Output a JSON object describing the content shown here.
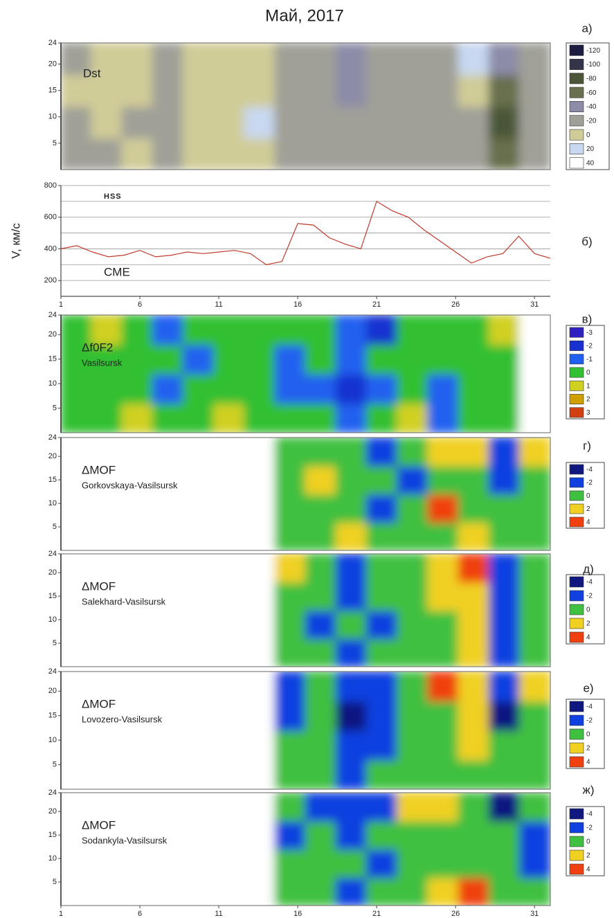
{
  "title": "Май, 2017",
  "chart_data": [
    {
      "type": "heatmap",
      "panel": "а)",
      "label": "Dst",
      "xlim": [
        1,
        32
      ],
      "ylim": [
        0,
        24
      ],
      "yticks": [
        5,
        10,
        15,
        20,
        24
      ],
      "scale": [
        -120,
        -100,
        -80,
        -60,
        -40,
        -20,
        0,
        20,
        40
      ],
      "colors": [
        "#1c1c40",
        "#33334a",
        "#4b5638",
        "#68704e",
        "#8c8ca8",
        "#a0a098",
        "#d0cc98",
        "#c8d8f0",
        "#ffffff"
      ],
      "z": [
        [
          -20,
          -20,
          0,
          -20,
          0,
          0,
          0,
          -20,
          -20,
          -20,
          -20,
          -20,
          -20,
          -20,
          -60,
          -20
        ],
        [
          -20,
          0,
          -20,
          -20,
          0,
          0,
          20,
          -20,
          -20,
          -20,
          -20,
          -20,
          -20,
          -20,
          -80,
          -20
        ],
        [
          0,
          0,
          0,
          -20,
          0,
          0,
          0,
          -20,
          -20,
          -40,
          -20,
          -20,
          -20,
          0,
          -60,
          -20
        ],
        [
          -20,
          0,
          0,
          -20,
          0,
          0,
          0,
          -20,
          -20,
          -40,
          -20,
          -20,
          -20,
          20,
          -40,
          -20
        ]
      ]
    },
    {
      "type": "line",
      "panel": "б)",
      "ylabel": "V, км/с",
      "annotations": [
        "HSS",
        "CME"
      ],
      "xlim": [
        1,
        32
      ],
      "xticks": [
        1,
        6,
        11,
        16,
        21,
        26,
        31
      ],
      "ylim": [
        100,
        800
      ],
      "yticks": [
        200,
        400,
        600,
        800
      ],
      "ygrid": [
        200,
        300,
        400,
        500,
        600,
        700,
        800
      ],
      "color": "#c0392b",
      "x": [
        1,
        2,
        3,
        4,
        5,
        6,
        7,
        8,
        9,
        10,
        11,
        12,
        13,
        14,
        15,
        16,
        17,
        18,
        19,
        20,
        21,
        22,
        23,
        24,
        25,
        26,
        27,
        28,
        29,
        30,
        31,
        32
      ],
      "values": [
        400,
        420,
        380,
        350,
        360,
        390,
        350,
        360,
        380,
        370,
        380,
        390,
        370,
        300,
        320,
        560,
        550,
        470,
        430,
        400,
        700,
        640,
        600,
        520,
        450,
        380,
        310,
        350,
        370,
        480,
        370,
        340
      ]
    },
    {
      "type": "heatmap",
      "panel": "в)",
      "label": "Δf0F2",
      "sublabel": "Vasilsursk",
      "xlim": [
        1,
        32
      ],
      "ylim": [
        0,
        24
      ],
      "yticks": [
        5,
        10,
        15,
        20,
        24
      ],
      "scale": [
        -3,
        -2,
        -1,
        0,
        1,
        2,
        3
      ],
      "colors": [
        "#3020c0",
        "#1830d0",
        "#2060f0",
        "#30c030",
        "#d0d020",
        "#d0a000",
        "#d04010"
      ],
      "z": [
        [
          0,
          0,
          1,
          0,
          0,
          1,
          0,
          0,
          0,
          -1,
          0,
          1,
          -1,
          0,
          0,
          null
        ],
        [
          0,
          0,
          0,
          -1,
          0,
          0,
          0,
          -1,
          -1,
          -2,
          -1,
          0,
          -1,
          0,
          0,
          null
        ],
        [
          0,
          0,
          0,
          0,
          -1,
          0,
          0,
          -1,
          0,
          -1,
          0,
          0,
          0,
          0,
          0,
          null
        ],
        [
          0,
          1,
          0,
          -1,
          0,
          0,
          0,
          0,
          0,
          -1,
          -2,
          0,
          0,
          0,
          1,
          null
        ]
      ]
    },
    {
      "type": "heatmap",
      "panel": "г)",
      "label": "ΔMOF",
      "sublabel": "Gorkovskaya-Vasilsursk",
      "xlim": [
        1,
        32
      ],
      "ylim": [
        0,
        24
      ],
      "yticks": [
        5,
        10,
        15,
        20,
        24
      ],
      "scale": [
        -4,
        -2,
        0,
        2,
        4
      ],
      "colors": [
        "#101880",
        "#1040e0",
        "#40c040",
        "#f0d020",
        "#f04010"
      ],
      "z": [
        [
          null,
          null,
          null,
          null,
          null,
          null,
          null,
          0,
          0,
          2,
          0,
          0,
          0,
          2,
          0,
          0
        ],
        [
          null,
          null,
          null,
          null,
          null,
          null,
          null,
          0,
          0,
          0,
          -2,
          0,
          4,
          0,
          0,
          0
        ],
        [
          null,
          null,
          null,
          null,
          null,
          null,
          null,
          0,
          2,
          0,
          0,
          -2,
          0,
          0,
          -2,
          0
        ],
        [
          null,
          null,
          null,
          null,
          null,
          null,
          null,
          0,
          0,
          0,
          -2,
          0,
          2,
          2,
          -2,
          2
        ]
      ]
    },
    {
      "type": "heatmap",
      "panel": "д)",
      "label": "ΔMOF",
      "sublabel": "Salekhard-Vasilsursk",
      "xlim": [
        1,
        32
      ],
      "ylim": [
        0,
        24
      ],
      "yticks": [
        5,
        10,
        15,
        20,
        24
      ],
      "scale": [
        -4,
        -2,
        0,
        2,
        4
      ],
      "colors": [
        "#101880",
        "#1040e0",
        "#40c040",
        "#f0d020",
        "#f04010"
      ],
      "z": [
        [
          null,
          null,
          null,
          null,
          null,
          null,
          null,
          0,
          0,
          -2,
          0,
          0,
          0,
          2,
          -2,
          0
        ],
        [
          null,
          null,
          null,
          null,
          null,
          null,
          null,
          0,
          -2,
          0,
          -2,
          0,
          0,
          2,
          -2,
          0
        ],
        [
          null,
          null,
          null,
          null,
          null,
          null,
          null,
          0,
          0,
          -2,
          0,
          0,
          2,
          2,
          -2,
          0
        ],
        [
          null,
          null,
          null,
          null,
          null,
          null,
          null,
          2,
          0,
          -2,
          0,
          0,
          2,
          4,
          -2,
          0
        ]
      ]
    },
    {
      "type": "heatmap",
      "panel": "е)",
      "label": "ΔMOF",
      "sublabel": "Lovozero-Vasilsursk",
      "xlim": [
        1,
        32
      ],
      "ylim": [
        0,
        24
      ],
      "yticks": [
        5,
        10,
        15,
        20,
        24
      ],
      "scale": [
        -4,
        -2,
        0,
        2,
        4
      ],
      "colors": [
        "#101880",
        "#1040e0",
        "#40c040",
        "#f0d020",
        "#f04010"
      ],
      "z": [
        [
          null,
          null,
          null,
          null,
          null,
          null,
          null,
          0,
          0,
          -2,
          0,
          0,
          0,
          0,
          0,
          0
        ],
        [
          null,
          null,
          null,
          null,
          null,
          null,
          null,
          0,
          0,
          -2,
          -2,
          0,
          0,
          2,
          0,
          0
        ],
        [
          null,
          null,
          null,
          null,
          null,
          null,
          null,
          -2,
          0,
          -4,
          -2,
          0,
          0,
          2,
          -4,
          0
        ],
        [
          null,
          null,
          null,
          null,
          null,
          null,
          null,
          -2,
          0,
          -2,
          -2,
          0,
          4,
          2,
          -2,
          2
        ]
      ]
    },
    {
      "type": "heatmap",
      "panel": "ж)",
      "label": "ΔMOF",
      "sublabel": "Sodankyla-Vasilsursk",
      "xlim": [
        1,
        32
      ],
      "ylim": [
        0,
        24
      ],
      "yticks": [
        5,
        10,
        15,
        20,
        24
      ],
      "xticks": [
        1,
        6,
        11,
        16,
        21,
        26,
        31
      ],
      "scale": [
        -4,
        -2,
        0,
        2,
        4
      ],
      "colors": [
        "#101880",
        "#1040e0",
        "#40c040",
        "#f0d020",
        "#f04010"
      ],
      "z": [
        [
          null,
          null,
          null,
          null,
          null,
          null,
          null,
          0,
          0,
          -2,
          0,
          0,
          2,
          4,
          0,
          0
        ],
        [
          null,
          null,
          null,
          null,
          null,
          null,
          null,
          0,
          0,
          0,
          -2,
          0,
          0,
          0,
          0,
          -2
        ],
        [
          null,
          null,
          null,
          null,
          null,
          null,
          null,
          -2,
          0,
          -2,
          0,
          0,
          0,
          0,
          0,
          -2
        ],
        [
          null,
          null,
          null,
          null,
          null,
          null,
          null,
          0,
          -2,
          -2,
          -2,
          2,
          2,
          0,
          -4,
          0
        ]
      ]
    }
  ]
}
